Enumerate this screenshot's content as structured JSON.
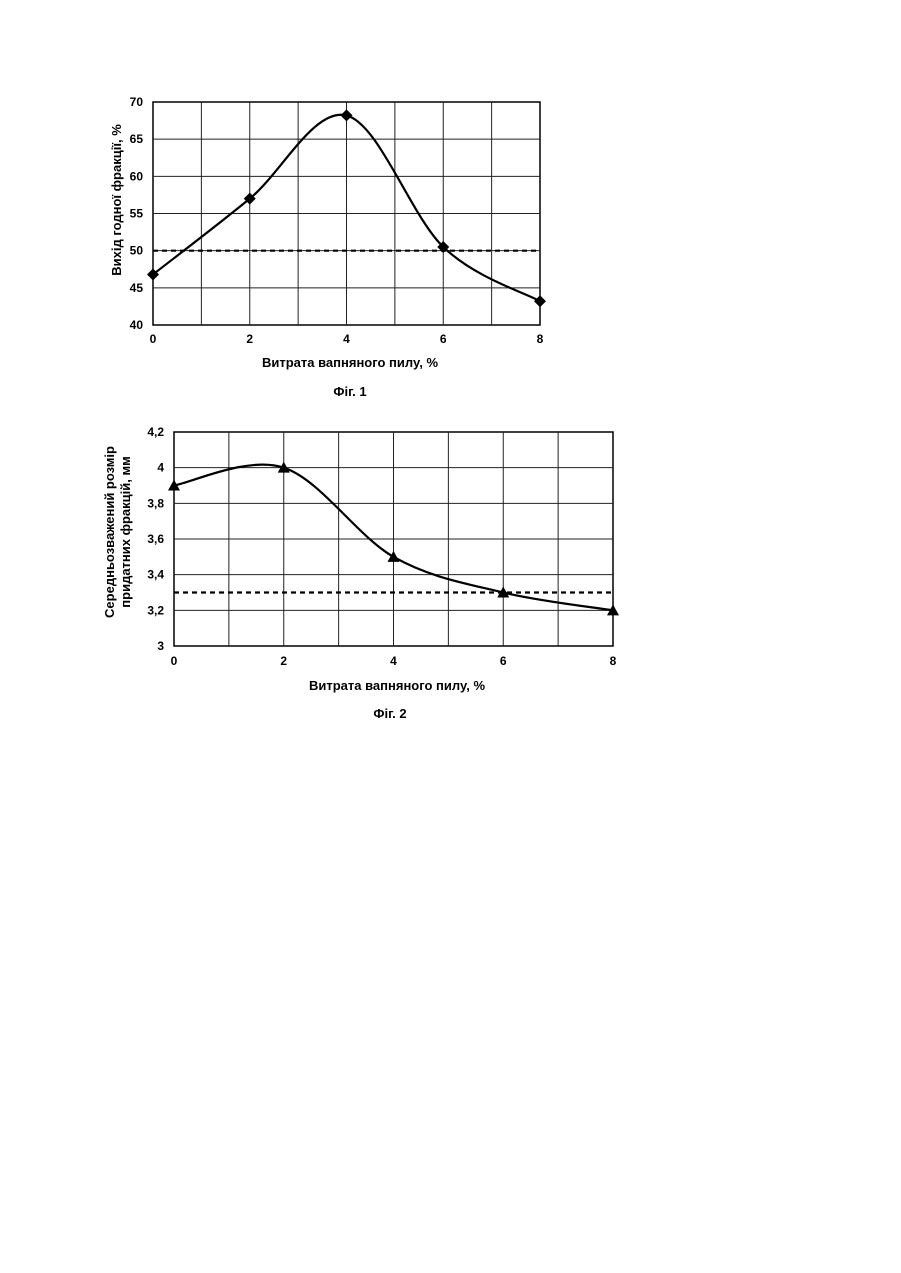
{
  "chart_data": [
    {
      "type": "line",
      "caption": "Фіг. 1",
      "xlabel": "Витрата вапняного пилу, %",
      "ylabel": "Вихід годної фракції, %",
      "xlim": [
        0,
        8
      ],
      "ylim": [
        40,
        70
      ],
      "x_ticks": [
        "0",
        "2",
        "4",
        "6",
        "8"
      ],
      "y_ticks": [
        "40",
        "45",
        "50",
        "55",
        "60",
        "65",
        "70"
      ],
      "marker": "diamond",
      "series": [
        {
          "x": [
            0,
            2,
            4,
            6,
            8
          ],
          "y": [
            46.8,
            57.0,
            68.2,
            50.5,
            43.2
          ]
        }
      ],
      "reference_line": {
        "style": "dashed",
        "y": 50
      },
      "grid": true
    },
    {
      "type": "line",
      "caption": "Фіг. 2",
      "xlabel": "Витрата вапняного пилу, %",
      "ylabel": [
        "Середньозважений розмір",
        "придатних фракцій, мм"
      ],
      "xlim": [
        0,
        8
      ],
      "ylim": [
        3,
        4.2
      ],
      "x_ticks": [
        "0",
        "2",
        "4",
        "6",
        "8"
      ],
      "y_ticks": [
        "3",
        "3,2",
        "3,4",
        "3,6",
        "3,8",
        "4",
        "4,2"
      ],
      "marker": "triangle",
      "series": [
        {
          "x": [
            0,
            2,
            4,
            6,
            8
          ],
          "y": [
            3.9,
            4.0,
            3.5,
            3.3,
            3.2
          ]
        }
      ],
      "reference_line": {
        "style": "dashed",
        "y": 3.3
      },
      "grid": true
    }
  ]
}
